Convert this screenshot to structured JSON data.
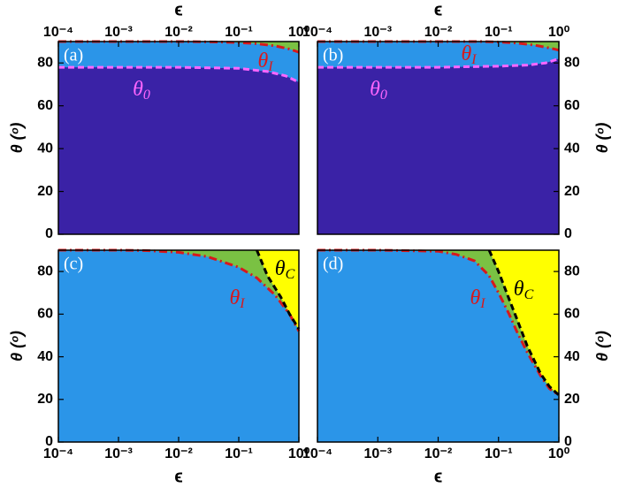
{
  "chart_data": [
    {
      "type": "region",
      "panel_label": "(a)",
      "xlabel": "ϵ",
      "ylabel": "θ (ᵒ)",
      "log_x": true,
      "x_axis_side": "top",
      "y_axis_side": "left",
      "background": "#7ac143",
      "xlim": [
        0.0001,
        1
      ],
      "xticks": [
        {
          "value": 0.0001,
          "label": "10⁻⁴"
        },
        {
          "value": 0.001,
          "label": "10⁻³"
        },
        {
          "value": 0.01,
          "label": "10⁻²"
        },
        {
          "value": 0.1,
          "label": "10⁻¹"
        },
        {
          "value": 1,
          "label": "10⁰"
        }
      ],
      "ylim": [
        0,
        90
      ],
      "yticks": [
        0,
        20,
        40,
        60,
        80
      ],
      "series": [
        {
          "name": {
            "symbol": "θ",
            "subscript": "I"
          },
          "color": "#d7191c",
          "dash": "dashdot",
          "fill": "#2b95e8",
          "fill_side": "below",
          "x": [
            0.0001,
            0.01,
            0.05,
            0.1,
            0.2,
            0.4,
            0.7,
            1
          ],
          "values": [
            90,
            90,
            89.8,
            89.5,
            89,
            88,
            86.5,
            85
          ]
        },
        {
          "name": {
            "symbol": "θ",
            "subscript": "0"
          },
          "color": "#ff66ff",
          "dash": "dashed",
          "fill": "#3a22a6",
          "fill_side": "below",
          "x": [
            0.0001,
            0.001,
            0.01,
            0.1,
            0.3,
            0.6,
            1
          ],
          "values": [
            78,
            78,
            78,
            77.5,
            76,
            74,
            71
          ]
        }
      ]
    },
    {
      "type": "region",
      "panel_label": "(b)",
      "xlabel": "ϵ",
      "ylabel": "θ (ᵒ)",
      "log_x": true,
      "x_axis_side": "top",
      "y_axis_side": "right",
      "background": "#7ac143",
      "xlim": [
        0.0001,
        1
      ],
      "xticks": [
        {
          "value": 0.0001,
          "label": "10⁻⁴"
        },
        {
          "value": 0.001,
          "label": "10⁻³"
        },
        {
          "value": 0.01,
          "label": "10⁻²"
        },
        {
          "value": 0.1,
          "label": "10⁻¹"
        },
        {
          "value": 1,
          "label": "10⁰"
        }
      ],
      "ylim": [
        0,
        90
      ],
      "yticks": [
        0,
        20,
        40,
        60,
        80
      ],
      "series": [
        {
          "name": {
            "symbol": "θ",
            "subscript": "I"
          },
          "color": "#d7191c",
          "dash": "dashdot",
          "fill": "#2b95e8",
          "fill_side": "below",
          "x": [
            0.0001,
            0.05,
            0.1,
            0.2,
            0.4,
            0.7,
            1
          ],
          "values": [
            90,
            90,
            89.8,
            89.3,
            88.3,
            87,
            86
          ]
        },
        {
          "name": {
            "symbol": "θ",
            "subscript": "0"
          },
          "color": "#ff66ff",
          "dash": "dashed",
          "fill": "#3a22a6",
          "fill_side": "below",
          "x": [
            0.0001,
            0.01,
            0.1,
            0.3,
            0.6,
            1
          ],
          "values": [
            78,
            78,
            78.5,
            79,
            80,
            82
          ]
        }
      ]
    },
    {
      "type": "region",
      "panel_label": "(c)",
      "xlabel": "ϵ",
      "ylabel": "θ (ᵒ)",
      "log_x": true,
      "x_axis_side": "bottom",
      "y_axis_side": "left",
      "background": "#7ac143",
      "xlim": [
        0.0001,
        1
      ],
      "xticks": [
        {
          "value": 0.0001,
          "label": "10⁻⁴"
        },
        {
          "value": 0.001,
          "label": "10⁻³"
        },
        {
          "value": 0.01,
          "label": "10⁻²"
        },
        {
          "value": 0.1,
          "label": "10⁻¹"
        },
        {
          "value": 1,
          "label": "10⁰"
        }
      ],
      "ylim": [
        0,
        90
      ],
      "yticks": [
        0,
        20,
        40,
        60,
        80
      ],
      "series": [
        {
          "name": {
            "symbol": "θ",
            "subscript": "I"
          },
          "color": "#d7191c",
          "dash": "dashdot",
          "fill": "#2b95e8",
          "fill_side": "below",
          "x": [
            0.0001,
            0.001,
            0.003,
            0.01,
            0.03,
            0.1,
            0.2,
            0.4,
            0.7,
            1
          ],
          "values": [
            90,
            90,
            89.8,
            89,
            87,
            82,
            77,
            69,
            60,
            52
          ]
        },
        {
          "name": {
            "symbol": "θ",
            "subscript": "C"
          },
          "color": "#000000",
          "dash": "dashed",
          "fill": "#ffff00",
          "fill_side": "above",
          "x": [
            0.2,
            0.3,
            0.5,
            0.7,
            1
          ],
          "values": [
            90,
            78,
            68,
            60,
            53
          ]
        }
      ]
    },
    {
      "type": "region",
      "panel_label": "(d)",
      "xlabel": "ϵ",
      "ylabel": "θ (ᵒ)",
      "log_x": true,
      "x_axis_side": "bottom",
      "y_axis_side": "right",
      "background": "#7ac143",
      "xlim": [
        0.0001,
        1
      ],
      "xticks": [
        {
          "value": 0.0001,
          "label": "10⁻⁴"
        },
        {
          "value": 0.001,
          "label": "10⁻³"
        },
        {
          "value": 0.01,
          "label": "10⁻²"
        },
        {
          "value": 0.1,
          "label": "10⁻¹"
        },
        {
          "value": 1,
          "label": "10⁰"
        }
      ],
      "ylim": [
        0,
        90
      ],
      "yticks": [
        0,
        20,
        40,
        60,
        80
      ],
      "series": [
        {
          "name": {
            "symbol": "θ",
            "subscript": "I"
          },
          "color": "#d7191c",
          "dash": "dashdot",
          "fill": "#2b95e8",
          "fill_side": "below",
          "x": [
            0.0001,
            0.001,
            0.01,
            0.02,
            0.04,
            0.07,
            0.1,
            0.15,
            0.2,
            0.3,
            0.5,
            0.7,
            1
          ],
          "values": [
            90,
            90,
            89.5,
            88,
            85,
            78,
            70,
            60,
            52,
            42,
            31,
            25,
            22
          ]
        },
        {
          "name": {
            "symbol": "θ",
            "subscript": "C"
          },
          "color": "#000000",
          "dash": "dashed",
          "fill": "#ffff00",
          "fill_side": "above",
          "x": [
            0.07,
            0.1,
            0.15,
            0.2,
            0.3,
            0.5,
            0.7,
            1
          ],
          "values": [
            90,
            80,
            67,
            58,
            45,
            32,
            26,
            22
          ]
        }
      ]
    }
  ]
}
